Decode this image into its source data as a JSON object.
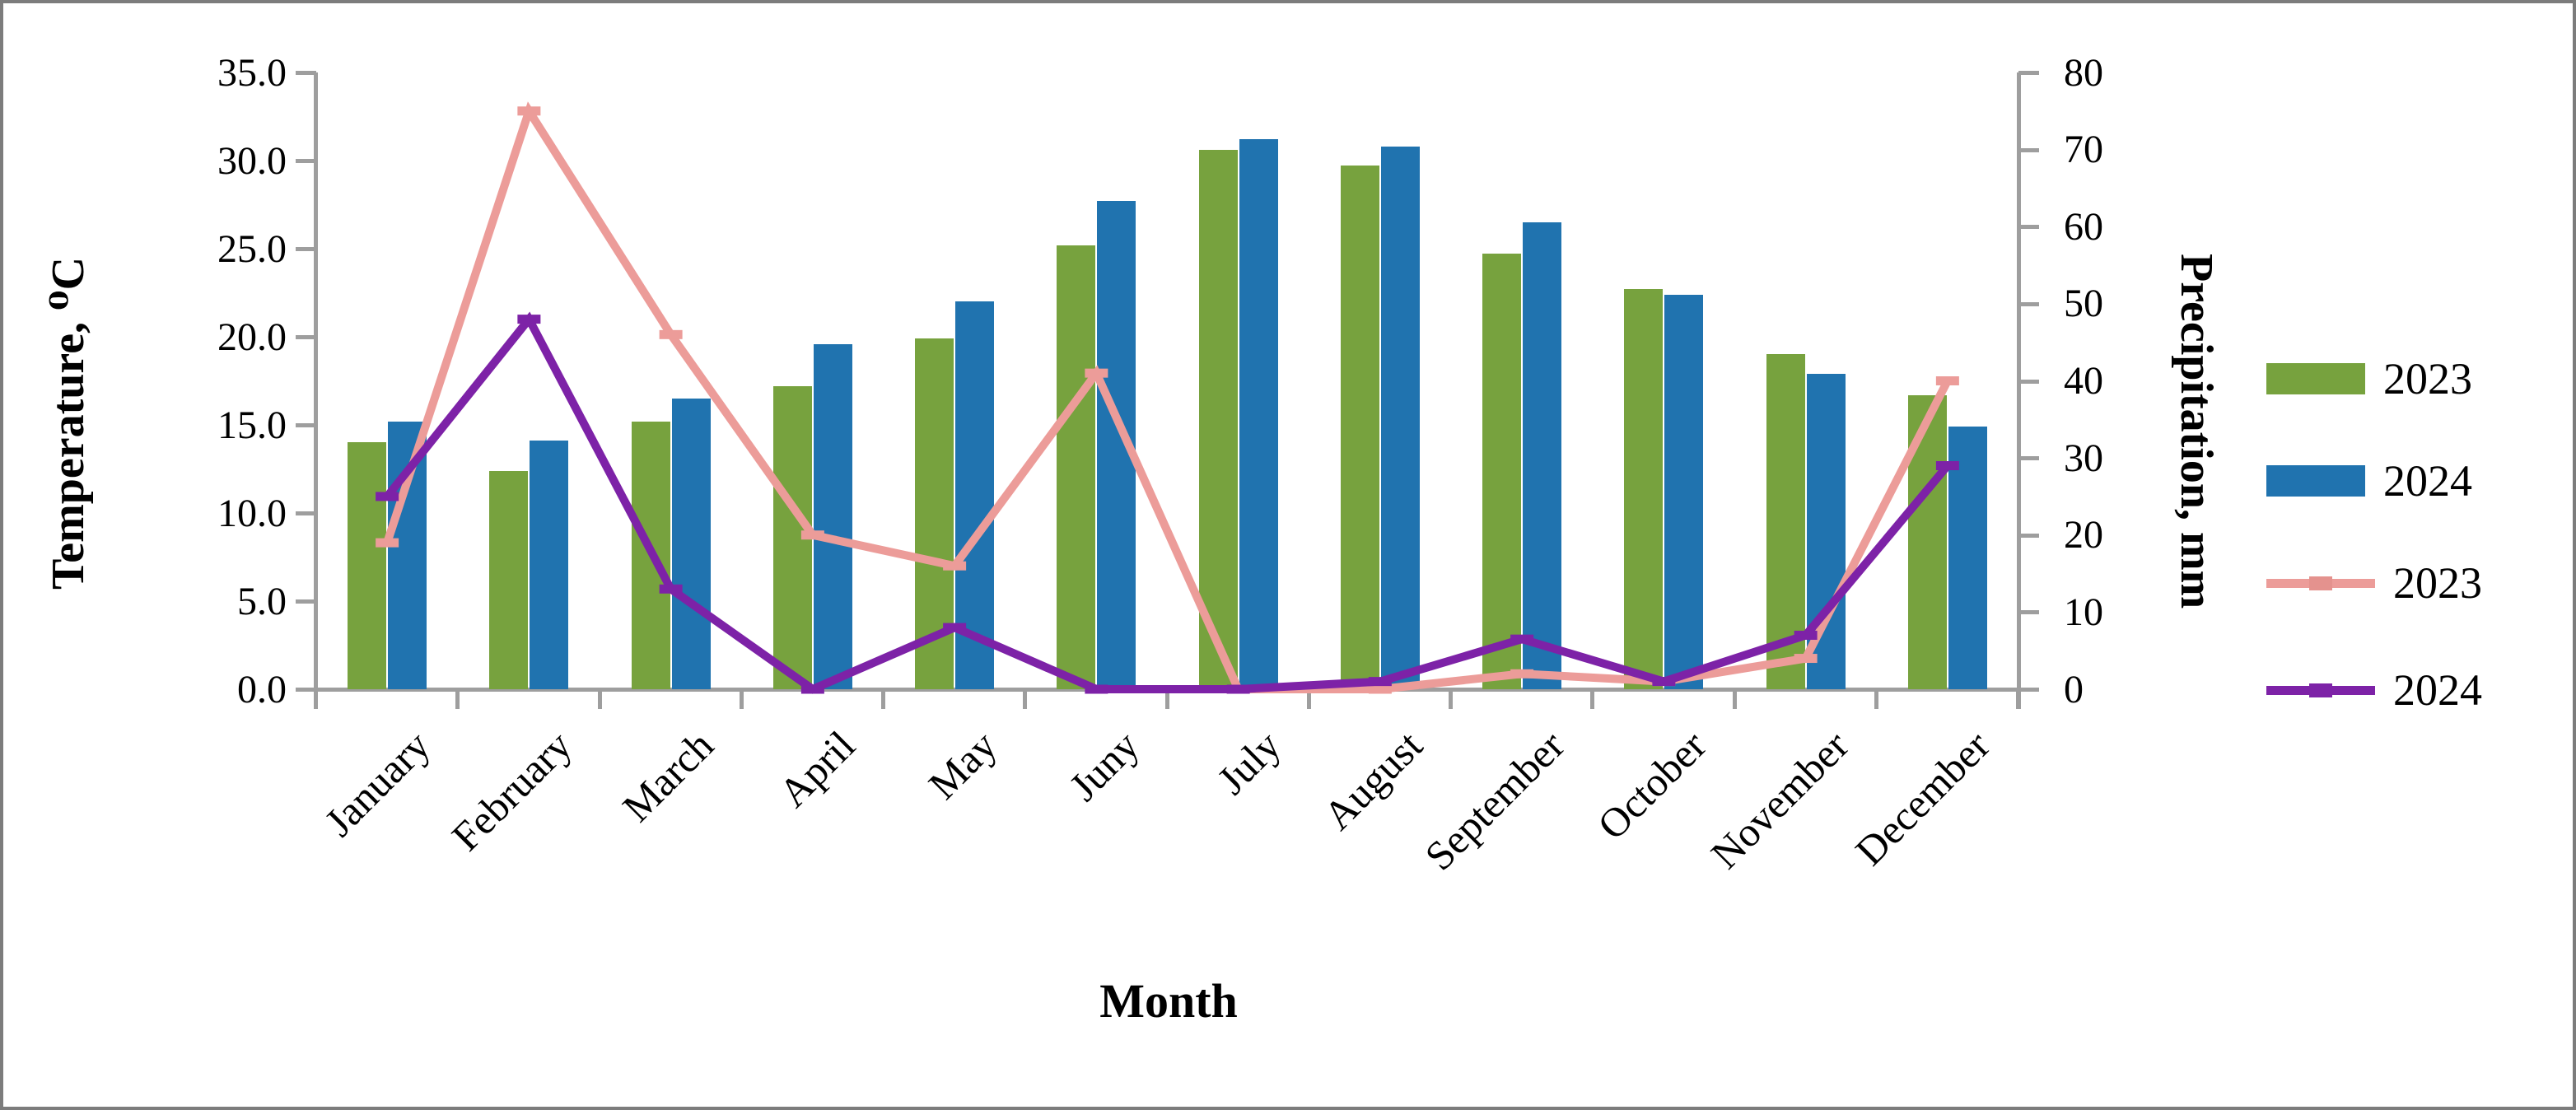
{
  "chart_data": {
    "type": "bar+line",
    "categories": [
      "January",
      "February",
      "March",
      "April",
      "May",
      "Juny",
      "July",
      "August",
      "September",
      "October",
      "November",
      "December"
    ],
    "series": [
      {
        "name": "2023",
        "type": "bar",
        "axis": "temperature",
        "color": "#77a23e",
        "values": [
          14.0,
          12.4,
          15.2,
          17.2,
          19.9,
          25.2,
          30.6,
          29.7,
          24.7,
          22.7,
          19.0,
          16.7
        ]
      },
      {
        "name": "2024",
        "type": "bar",
        "axis": "temperature",
        "color": "#2073af",
        "values": [
          15.2,
          14.1,
          16.5,
          19.6,
          22.0,
          27.7,
          31.2,
          30.8,
          26.5,
          22.4,
          17.9,
          14.9
        ]
      },
      {
        "name": "2023",
        "type": "line",
        "axis": "precipitation",
        "color": "#ec9c99",
        "values": [
          19,
          75,
          46,
          20,
          16,
          41,
          0,
          0,
          2,
          1,
          4,
          40
        ]
      },
      {
        "name": "2024",
        "type": "line",
        "axis": "precipitation",
        "color": "#7d22a7",
        "values": [
          25,
          48,
          13,
          0,
          8,
          0,
          0,
          1,
          6.5,
          1,
          7,
          29
        ]
      }
    ],
    "left_axis": {
      "title": "Temperature, ⁰C",
      "min": 0,
      "max": 35,
      "step": 5,
      "tick_labels": [
        "0.0",
        "5.0",
        "10.0",
        "15.0",
        "20.0",
        "25.0",
        "30.0",
        "35.0"
      ]
    },
    "right_axis": {
      "title": "Precipitation, mm",
      "min": 0,
      "max": 80,
      "step": 10,
      "tick_labels": [
        "0",
        "10",
        "20",
        "30",
        "40",
        "50",
        "60",
        "70",
        "80"
      ]
    },
    "x_axis": {
      "title": "Month"
    },
    "legend": [
      {
        "label": "2023",
        "swatch": "bar",
        "color": "#77a23e"
      },
      {
        "label": "2024",
        "swatch": "bar",
        "color": "#2073af"
      },
      {
        "label": "2023",
        "swatch": "line",
        "color": "#ec9c99",
        "marker_color": "#e4928e"
      },
      {
        "label": "2024",
        "swatch": "line",
        "color": "#7d22a7",
        "marker_color": "#7d22a7"
      }
    ],
    "style": {
      "axis_color": "#9e9e9e",
      "border_color": "#7c7c7c",
      "background": "#ffffff"
    },
    "layout": {
      "grid": "off",
      "legend_position": "right",
      "x_label_rotation": -45
    }
  }
}
